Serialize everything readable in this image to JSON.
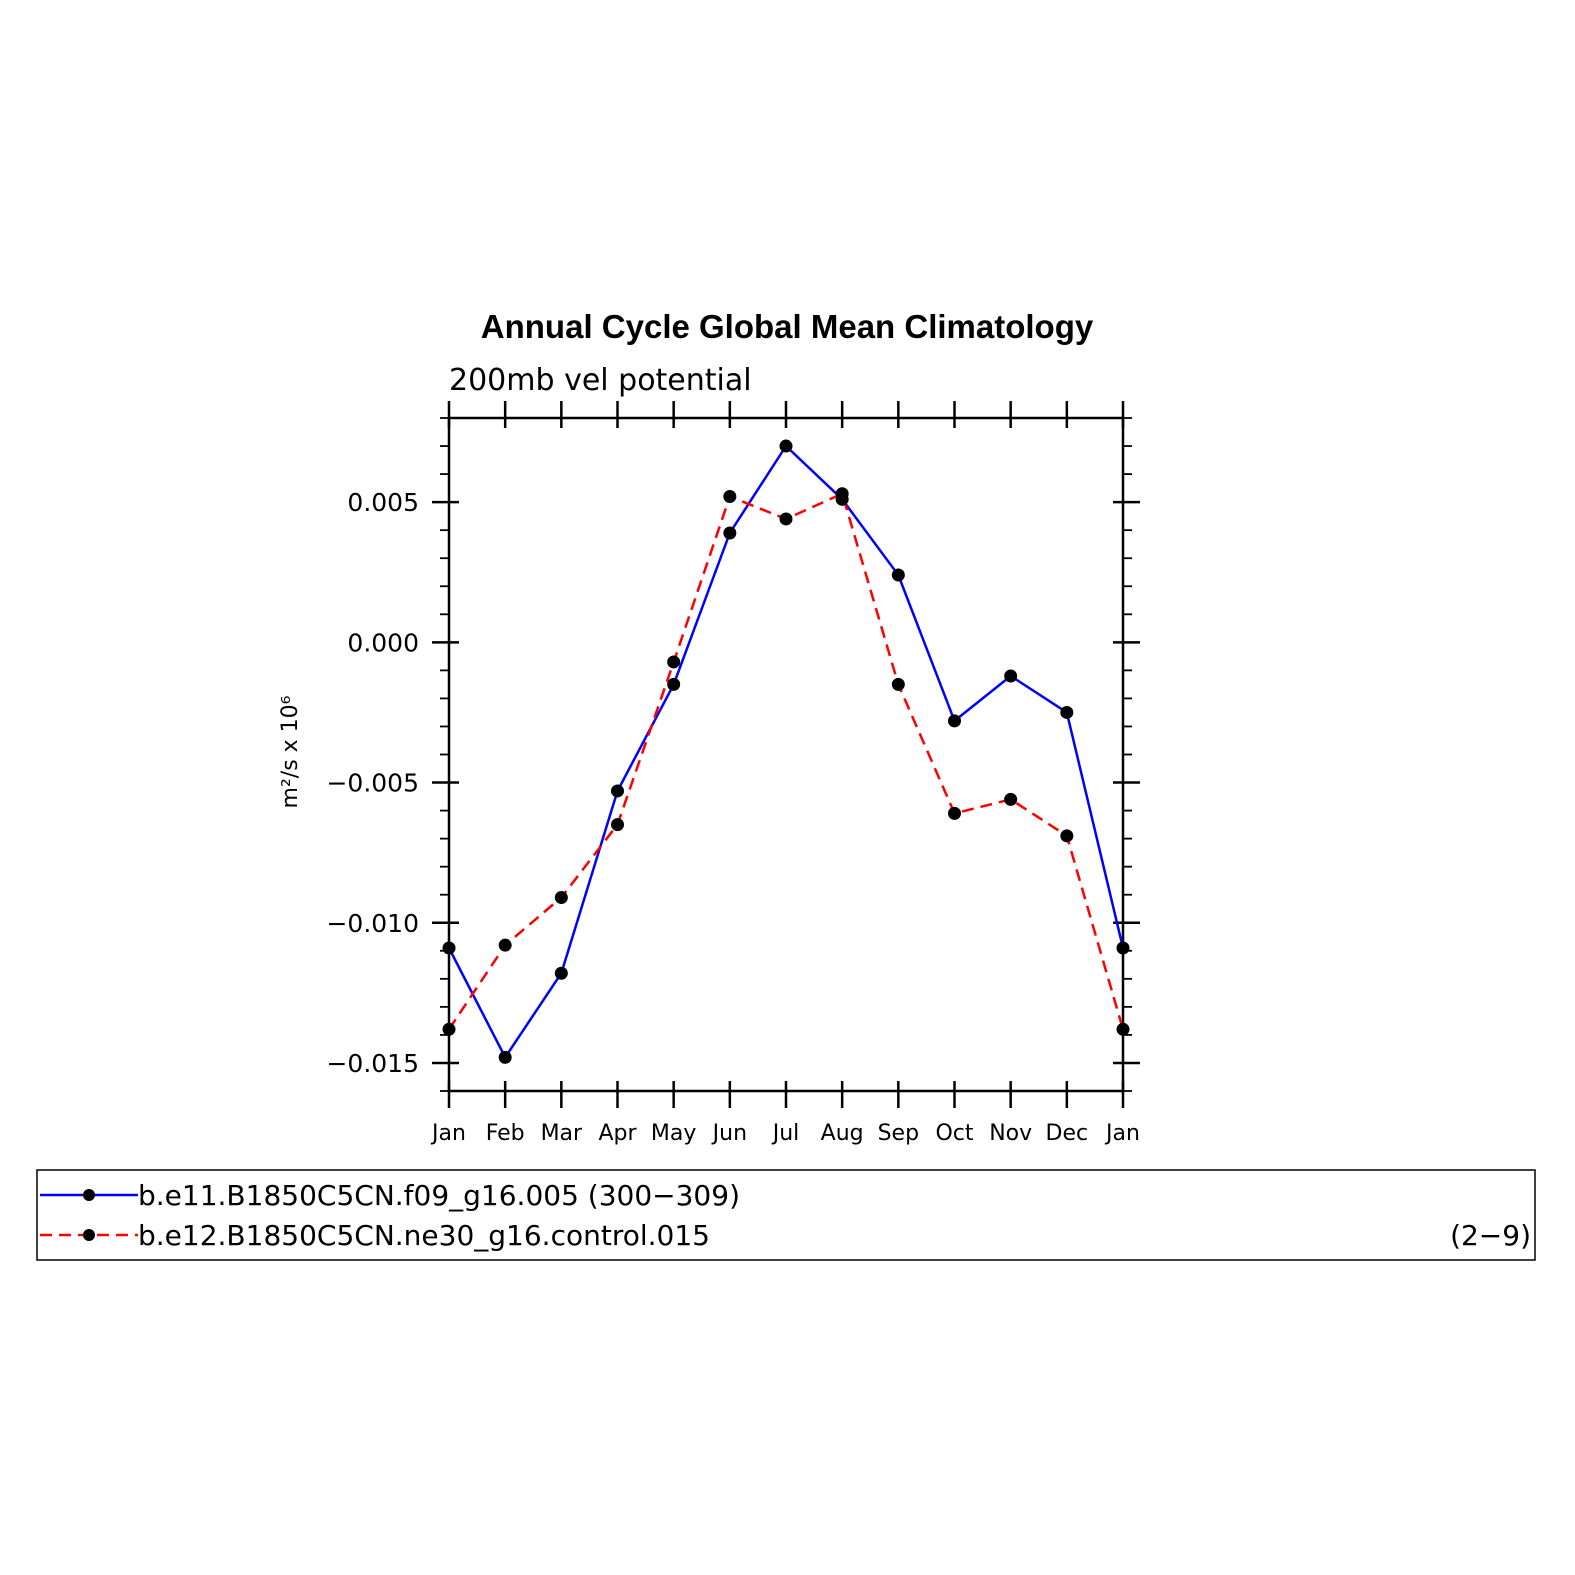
{
  "chart_data": {
    "type": "line",
    "title": "Annual Cycle Global Mean Climatology",
    "subtitle": "200mb vel potential",
    "ylabel": "m²/s x 10⁶",
    "xlabel": "",
    "categories": [
      "Jan",
      "Feb",
      "Mar",
      "Apr",
      "May",
      "Jun",
      "Jul",
      "Aug",
      "Sep",
      "Oct",
      "Nov",
      "Dec",
      "Jan"
    ],
    "ylim": [
      -0.016,
      0.008
    ],
    "yticks": [
      -0.015,
      -0.01,
      -0.005,
      0.0,
      0.005
    ],
    "ytick_labels": [
      "−0.015",
      "−0.010",
      "−0.005",
      "0.000",
      "0.005"
    ],
    "grid": false,
    "legend_position": "bottom",
    "series": [
      {
        "name": "b.e11.B1850C5CN.f09_g16.005 (300−309)",
        "color": "#0000ff",
        "dash": "solid",
        "values": [
          -0.0109,
          -0.0148,
          -0.0118,
          -0.0053,
          -0.0015,
          0.0039,
          0.007,
          0.0051,
          0.0024,
          -0.0028,
          -0.0012,
          -0.0025,
          -0.0109
        ]
      },
      {
        "name": "b.e12.B1850C5CN.ne30_g16.control.015",
        "extra": "(2−9)",
        "color": "#ff0000",
        "dash": "dashed",
        "values": [
          -0.0138,
          -0.0108,
          -0.0091,
          -0.0065,
          -0.0007,
          0.0052,
          0.0044,
          0.0053,
          -0.0015,
          -0.0061,
          -0.0056,
          -0.0069,
          -0.0138
        ]
      }
    ]
  }
}
